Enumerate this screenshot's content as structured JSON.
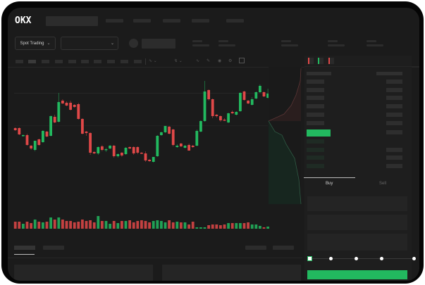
{
  "header": {
    "logo": "OKX",
    "market_selector": {
      "label": "Spot Trading",
      "icon": "chevron-down-icon"
    },
    "pair_selector": {
      "icon": "chevron-down-icon"
    }
  },
  "order_book": {
    "view_icons": [
      "order-book-both-icon",
      "order-book-bids-icon",
      "order-book-asks-icon"
    ]
  },
  "trade_form": {
    "tabs": [
      {
        "label": "Buy",
        "active": true
      },
      {
        "label": "Sell",
        "active": false
      }
    ],
    "slider_percent": 0
  },
  "colors": {
    "up": "#22b95f",
    "down": "#e04848",
    "background": "#1b1b1b",
    "frame": "#050505"
  },
  "chart_data": {
    "type": "candlestick",
    "candles_ohlc": [
      [
        118,
        119,
        114,
        115
      ],
      [
        118,
        119,
        108,
        109
      ],
      [
        107,
        109,
        106,
        108
      ],
      [
        108,
        110,
        93,
        94
      ],
      [
        93,
        94,
        87,
        89
      ],
      [
        87,
        100,
        85,
        100
      ],
      [
        102,
        103,
        93,
        94
      ],
      [
        98,
        115,
        97,
        114
      ],
      [
        113,
        114,
        105,
        106
      ],
      [
        107,
        136,
        106,
        135
      ],
      [
        134,
        137,
        125,
        126
      ],
      [
        127,
        168,
        126,
        155
      ],
      [
        157,
        159,
        152,
        153
      ],
      [
        154,
        156,
        149,
        150
      ],
      [
        154,
        157,
        143,
        144
      ],
      [
        151,
        152,
        147,
        148
      ],
      [
        152,
        154,
        130,
        131
      ],
      [
        131,
        132,
        109,
        110
      ],
      [
        113,
        114,
        107,
        111
      ],
      [
        111,
        112,
        80,
        83
      ],
      [
        84,
        85,
        81,
        82
      ],
      [
        82,
        92,
        80,
        91
      ],
      [
        92,
        94,
        85,
        87
      ],
      [
        87,
        90,
        84,
        88
      ],
      [
        89,
        94,
        88,
        93
      ],
      [
        93,
        94,
        76,
        78
      ],
      [
        78,
        82,
        76,
        81
      ],
      [
        83,
        84,
        77,
        79
      ],
      [
        81,
        91,
        80,
        90
      ],
      [
        91,
        92,
        88,
        89
      ],
      [
        91,
        92,
        80,
        82
      ],
      [
        91,
        92,
        81,
        83
      ],
      [
        83,
        84,
        81,
        82
      ],
      [
        82,
        85,
        70,
        72
      ],
      [
        73,
        74,
        70,
        71
      ],
      [
        70,
        77,
        69,
        77
      ],
      [
        78,
        108,
        77,
        107
      ],
      [
        108,
        113,
        107,
        112
      ],
      [
        112,
        121,
        111,
        121
      ],
      [
        120,
        121,
        109,
        110
      ],
      [
        116,
        117,
        92,
        94
      ],
      [
        91,
        95,
        90,
        93
      ],
      [
        96,
        97,
        91,
        92
      ],
      [
        90,
        94,
        89,
        93
      ],
      [
        94,
        96,
        86,
        86
      ],
      [
        93,
        94,
        90,
        91
      ],
      [
        93,
        116,
        92,
        114
      ],
      [
        113,
        129,
        112,
        128
      ],
      [
        128,
        185,
        127,
        170
      ],
      [
        172,
        173,
        157,
        159
      ],
      [
        159,
        160,
        132,
        135
      ],
      [
        137,
        138,
        133,
        135
      ],
      [
        135,
        136,
        127,
        129
      ],
      [
        130,
        132,
        128,
        129
      ],
      [
        126,
        140,
        125,
        139
      ],
      [
        141,
        143,
        138,
        139
      ],
      [
        137,
        142,
        136,
        141
      ],
      [
        142,
        169,
        141,
        168
      ],
      [
        170,
        171,
        157,
        158
      ],
      [
        157,
        158,
        152,
        153
      ],
      [
        151,
        162,
        150,
        159
      ],
      [
        160,
        170,
        159,
        169
      ],
      [
        169,
        180,
        168,
        178
      ],
      [
        169,
        170,
        162,
        163
      ],
      [
        161,
        174,
        160,
        167
      ]
    ],
    "volume": [
      10,
      10,
      7,
      10,
      8,
      13,
      10,
      9,
      10,
      16,
      13,
      16,
      13,
      11,
      11,
      9,
      10,
      13,
      11,
      12,
      9,
      18,
      11,
      11,
      7,
      11,
      8,
      11,
      11,
      12,
      9,
      11,
      12,
      11,
      9,
      11,
      12,
      11,
      9,
      12,
      9,
      10,
      9,
      9,
      6,
      10,
      2,
      2,
      2,
      5,
      6,
      6,
      5,
      6,
      8,
      8,
      8,
      8,
      8,
      9,
      6,
      6,
      4,
      2,
      3
    ]
  }
}
